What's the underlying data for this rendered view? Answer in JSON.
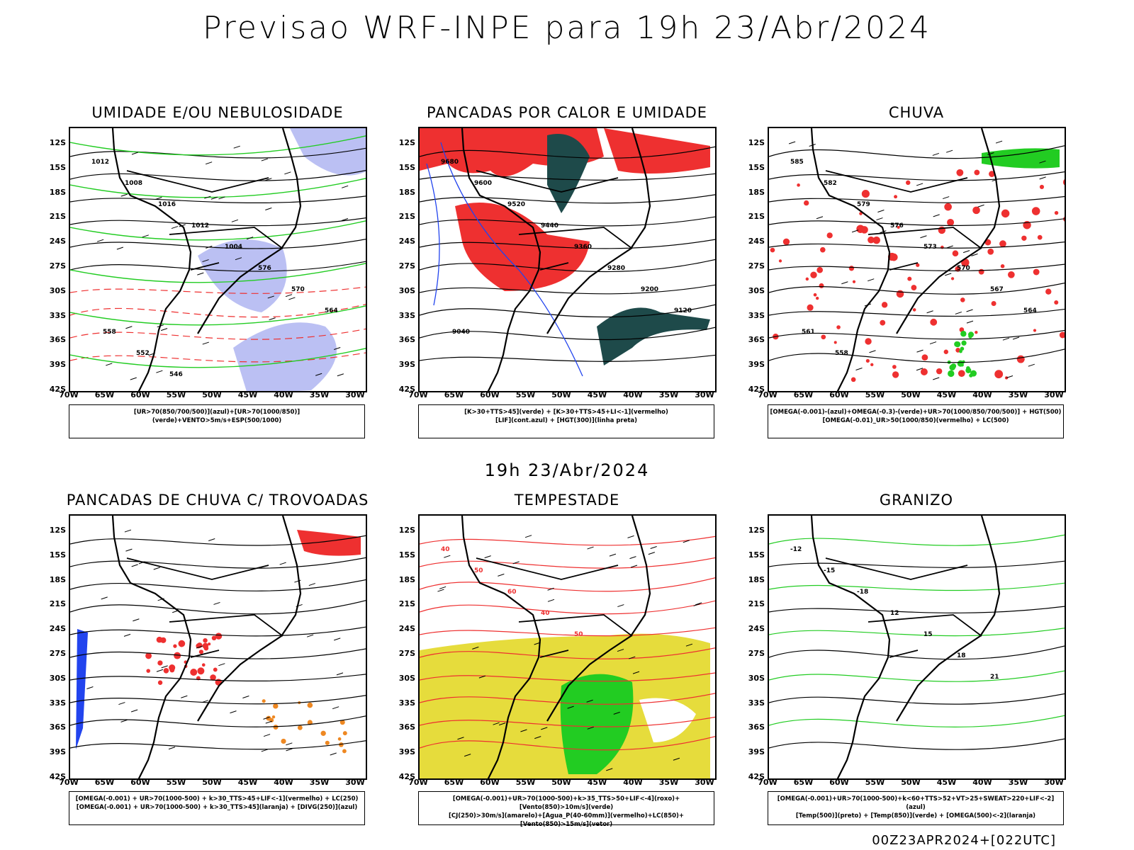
{
  "header": {
    "title": "Previsao WRF-INPE  para 19h 23/Abr/2024",
    "mid_title": "19h 23/Abr/2024",
    "footer": "00Z23APR2024+[022UTC]"
  },
  "axes": {
    "lat_labels": [
      "12S",
      "15S",
      "18S",
      "21S",
      "24S",
      "27S",
      "30S",
      "33S",
      "36S",
      "39S",
      "42S"
    ],
    "lon_labels": [
      "70W",
      "65W",
      "60W",
      "55W",
      "50W",
      "45W",
      "40W",
      "35W",
      "30W"
    ]
  },
  "panels": [
    {
      "id": "umidade",
      "title": "UMIDADE E/OU NEBULOSIDADE",
      "legend": [
        "[UR>70(850/700/500)](azul)+[UR>70(1000/850)](verde)+VENTO>5m/s+ESP(500/1000)"
      ],
      "contour_labels": [
        "1012",
        "1008",
        "1016",
        "1012",
        "1004",
        "576",
        "570",
        "564",
        "558",
        "552",
        "546"
      ]
    },
    {
      "id": "pancadas-calor",
      "title": "PANCADAS POR CALOR E UMIDADE",
      "legend": [
        "[K>30+TTS>45](verde) + [K>30+TTS>45+LI<-1](vermelho)",
        "[LIF](cont.azul) + [HGT(300)](linha preta)"
      ],
      "contour_labels": [
        "9680",
        "9600",
        "9520",
        "9440",
        "9360",
        "9280",
        "9200",
        "9120",
        "9040"
      ]
    },
    {
      "id": "chuva",
      "title": "CHUVA",
      "legend": [
        "[OMEGA(-0.001)-(azul)+OMEGA(-0.3)-(verde)+UR>70(1000/850/700/500)] + HGT(500)",
        "[OMEGA(-0.01)_UR>50(1000/850)(vermelho) + LC(500)"
      ],
      "contour_labels": [
        "585",
        "582",
        "579",
        "576",
        "573",
        "570",
        "567",
        "564",
        "561",
        "558"
      ]
    },
    {
      "id": "trovoadas",
      "title": "PANCADAS DE CHUVA C/ TROVOADAS",
      "legend": [
        "[OMEGA(-0.001) + UR>70(1000-500) + k>30_TTS>45+LIF<-1](vermelho) + LC(250)",
        "[OMEGA(-0.001) + UR>70(1000-500) + k>30_TTS>45](laranja) + [DIVG(250)](azul)"
      ],
      "contour_labels": []
    },
    {
      "id": "tempestade",
      "title": "TEMPESTADE",
      "legend": [
        "[OMEGA(-0.001)+UR>70(1000-500)+k>35_TTS>50+LIF<-4](roxo)+[Vento(850)>10m/s](verde)",
        "[CJ(250)>30m/s](amarelo)+[Agua_P(40-60mm)](vermelho)+LC(850)+[Vento(850)>15m/s](vetor)"
      ],
      "contour_labels": [
        "40",
        "50",
        "60",
        "40",
        "50"
      ]
    },
    {
      "id": "granizo",
      "title": "GRANIZO",
      "legend": [
        "[OMEGA(-0.001)+UR>70(1000-500)+k<60+TTS>52+VT>25+SWEAT>220+LIF<-2](azul)",
        "[Temp(500)](preto) + [Temp(850)](verde) + [OMEGA(500)<-2](laranja)"
      ],
      "contour_labels": [
        "-12",
        "-15",
        "-18",
        "12",
        "15",
        "18",
        "21"
      ]
    }
  ],
  "colors": {
    "black": "#000000",
    "red": "#ee3030",
    "green": "#22cc22",
    "blue": "#2244ee",
    "lavender": "#aab0f0",
    "darkteal": "#1e4a4a",
    "yellow": "#e6dc3c",
    "orange": "#ee8822"
  }
}
